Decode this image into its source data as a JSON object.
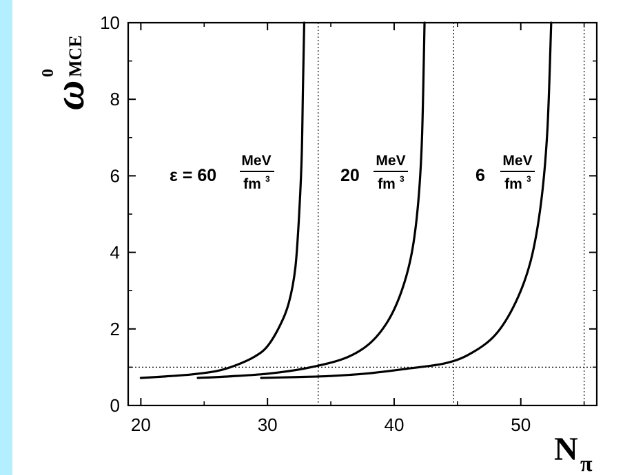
{
  "colors": {
    "border": "#b3efff",
    "background": "#ffffff",
    "curve": "#000000"
  },
  "chart_data": {
    "type": "line",
    "title": "",
    "xlabel": {
      "main": "N",
      "subscript": "π"
    },
    "ylabel": {
      "main": "ω",
      "superscript": "0",
      "subscript": "MCE"
    },
    "xlim": [
      19,
      56
    ],
    "ylim": [
      0,
      10
    ],
    "xticks": [
      20,
      30,
      40,
      50
    ],
    "yticks": [
      0,
      2,
      4,
      6,
      8,
      10
    ],
    "grid": false,
    "reference_lines": {
      "x": [
        34,
        44.7,
        55
      ],
      "y": [
        1
      ]
    },
    "series": [
      {
        "x": [
          20,
          22,
          24,
          26,
          27.5,
          29,
          30,
          31,
          31.7,
          32.2,
          32.5,
          32.7,
          32.8,
          32.9
        ],
        "y": [
          0.72,
          0.76,
          0.81,
          0.9,
          1.05,
          1.28,
          1.55,
          2.1,
          2.7,
          3.6,
          5.0,
          6.5,
          8.3,
          10
        ]
      },
      {
        "x": [
          24.5,
          27,
          30,
          33,
          36,
          38,
          39.5,
          40.6,
          41.4,
          41.9,
          42.2,
          42.4
        ],
        "y": [
          0.72,
          0.76,
          0.83,
          0.97,
          1.22,
          1.6,
          2.2,
          3.0,
          4.0,
          5.3,
          7.0,
          10
        ]
      },
      {
        "x": [
          29.5,
          32,
          35,
          38,
          41,
          44,
          46,
          48,
          49.6,
          50.8,
          51.6,
          52.1,
          52.4
        ],
        "y": [
          0.72,
          0.74,
          0.77,
          0.84,
          0.96,
          1.1,
          1.35,
          1.85,
          2.7,
          3.8,
          5.3,
          7.2,
          10
        ]
      }
    ],
    "annotations": [
      {
        "prefix": "ε = 60",
        "numerator": "MeV",
        "denominator": "fm",
        "power": "3"
      },
      {
        "prefix": "20",
        "numerator": "MeV",
        "denominator": "fm",
        "power": "3"
      },
      {
        "prefix": "6",
        "numerator": "MeV",
        "denominator": "fm",
        "power": "3"
      }
    ]
  }
}
